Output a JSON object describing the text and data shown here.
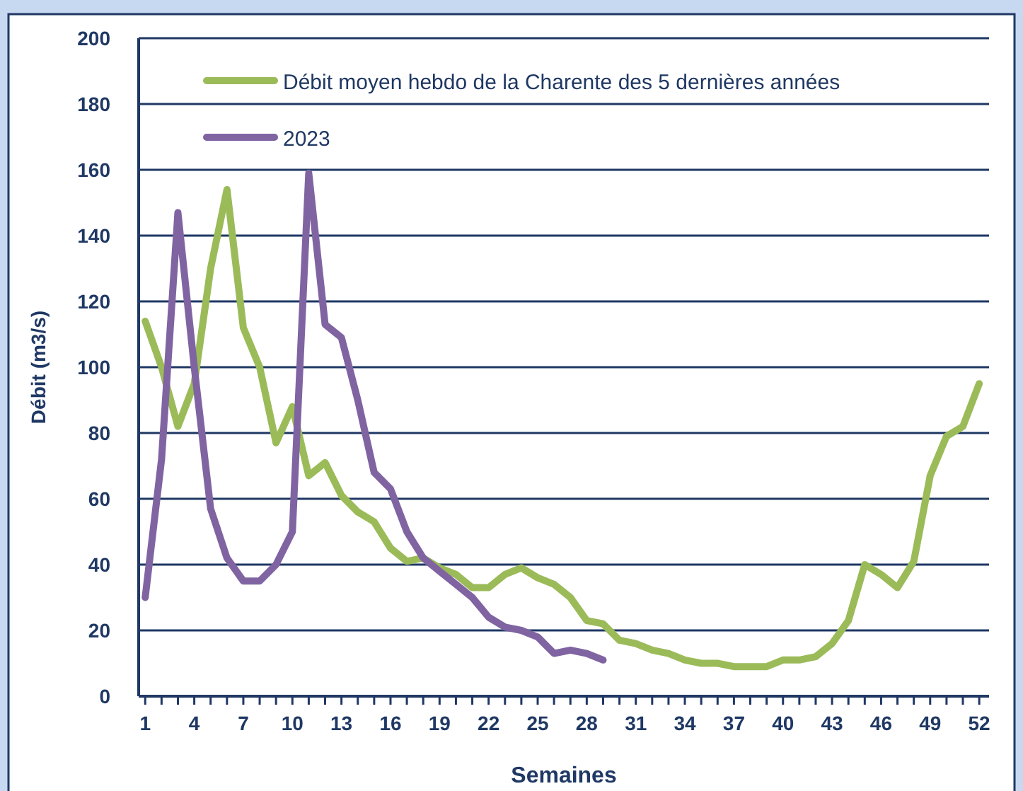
{
  "chart_data": {
    "type": "line",
    "xlabel": "Semaines",
    "ylabel": "Débit (m3/s)",
    "x": [
      1,
      2,
      3,
      4,
      5,
      6,
      7,
      8,
      9,
      10,
      11,
      12,
      13,
      14,
      15,
      16,
      17,
      18,
      19,
      20,
      21,
      22,
      23,
      24,
      25,
      26,
      27,
      28,
      29,
      30,
      31,
      32,
      33,
      34,
      35,
      36,
      37,
      38,
      39,
      40,
      41,
      42,
      43,
      44,
      45,
      46,
      47,
      48,
      49,
      50,
      51,
      52
    ],
    "series": [
      {
        "name": "Débit moyen hebdo de la Charente des 5 dernières années",
        "color": "#9bbb59",
        "values": [
          114,
          100,
          82,
          95,
          130,
          154,
          112,
          100,
          77,
          88,
          67,
          71,
          61,
          56,
          53,
          45,
          41,
          42,
          39,
          37,
          33,
          33,
          37,
          39,
          36,
          34,
          30,
          23,
          22,
          17,
          16,
          14,
          13,
          11,
          10,
          10,
          9,
          9,
          9,
          11,
          11,
          12,
          16,
          23,
          40,
          37,
          33,
          41,
          67,
          79,
          82,
          95
        ]
      },
      {
        "name": "2023",
        "color": "#8064a2",
        "values": [
          30,
          72,
          147,
          100,
          57,
          42,
          35,
          35,
          40,
          50,
          159,
          113,
          109,
          90,
          68,
          63,
          50,
          42,
          38,
          34,
          30,
          24,
          21,
          20,
          18,
          13,
          14,
          13,
          11,
          null,
          null,
          null,
          null,
          null,
          null,
          null,
          null,
          null,
          null,
          null,
          null,
          null,
          null,
          null,
          null,
          null,
          null,
          null,
          null,
          null,
          null,
          null
        ]
      }
    ],
    "xlim": [
      0.6,
      52.6
    ],
    "xticks": [
      1,
      {
        "value": 2,
        "label": null
      },
      {
        "value": 3,
        "label": null
      },
      4,
      {
        "value": 5,
        "label": null
      },
      {
        "value": 6,
        "label": null
      },
      7,
      {
        "value": 8,
        "label": null
      },
      {
        "value": 9,
        "label": null
      },
      10,
      {
        "value": 11,
        "label": null
      },
      {
        "value": 12,
        "label": null
      },
      13,
      {
        "value": 14,
        "label": null
      },
      {
        "value": 15,
        "label": null
      },
      16,
      {
        "value": 17,
        "label": null
      },
      {
        "value": 18,
        "label": null
      },
      19,
      {
        "value": 20,
        "label": null
      },
      {
        "value": 21,
        "label": null
      },
      22,
      {
        "value": 23,
        "label": null
      },
      {
        "value": 24,
        "label": null
      },
      25,
      {
        "value": 26,
        "label": null
      },
      {
        "value": 27,
        "label": null
      },
      28,
      {
        "value": 29,
        "label": null
      },
      {
        "value": 30,
        "label": null
      },
      31,
      {
        "value": 32,
        "label": null
      },
      {
        "value": 33,
        "label": null
      },
      34,
      {
        "value": 35,
        "label": null
      },
      {
        "value": 36,
        "label": null
      },
      37,
      {
        "value": 38,
        "label": null
      },
      {
        "value": 39,
        "label": null
      },
      40,
      {
        "value": 41,
        "label": null
      },
      {
        "value": 42,
        "label": null
      },
      43,
      {
        "value": 44,
        "label": null
      },
      {
        "value": 45,
        "label": null
      },
      46,
      {
        "value": 47,
        "label": null
      },
      {
        "value": 48,
        "label": null
      },
      49,
      {
        "value": 50,
        "label": null
      },
      {
        "value": 51,
        "label": null
      },
      52
    ],
    "ylim": [
      0,
      200
    ],
    "yticks": [
      0,
      20,
      40,
      60,
      80,
      100,
      120,
      140,
      160,
      180,
      200
    ],
    "grid": "y",
    "legend": "top left",
    "marker": "none",
    "line_style": "solid"
  }
}
